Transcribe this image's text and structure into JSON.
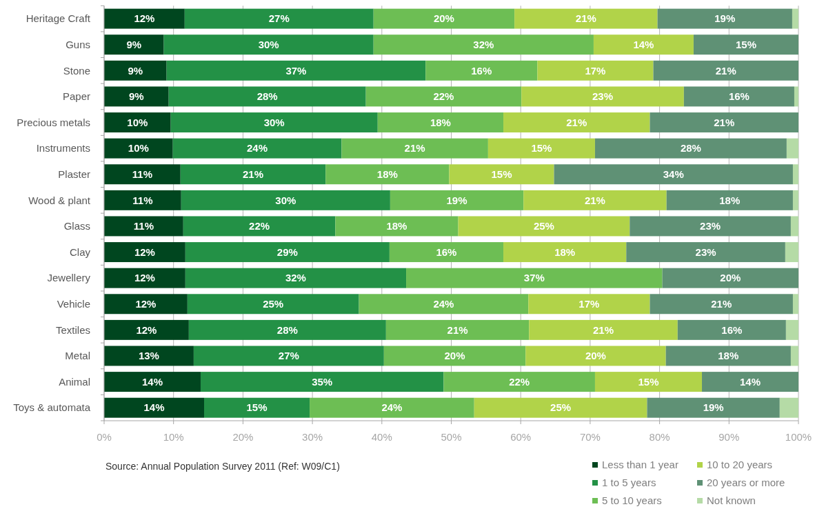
{
  "chart_data": {
    "type": "bar",
    "orientation": "horizontal",
    "stacked": true,
    "categories": [
      "Heritage Craft",
      "Guns",
      "Stone",
      "Paper",
      "Precious metals",
      "Instruments",
      "Plaster",
      "Wood & plant",
      "Glass",
      "Clay",
      "Jewellery",
      "Vehicle",
      "Textiles",
      "Metal",
      "Animal",
      "Toys & automata"
    ],
    "series": [
      {
        "name": "Less than 1 year",
        "color": "#00461f",
        "values": [
          11.6,
          8.6,
          9.0,
          9.3,
          9.6,
          9.9,
          11.0,
          11.1,
          11.4,
          11.7,
          11.7,
          12.0,
          12.2,
          12.9,
          13.9,
          14.4
        ],
        "value_labels": [
          "12%",
          "9%",
          "9%",
          "9%",
          "10%",
          "10%",
          "11%",
          "11%",
          "11%",
          "12%",
          "12%",
          "12%",
          "12%",
          "13%",
          "14%",
          "14%"
        ]
      },
      {
        "name": "1 to 5 years",
        "color": "#239146",
        "values": [
          27.2,
          30.2,
          37.3,
          28.4,
          29.8,
          24.3,
          20.9,
          30.1,
          21.9,
          29.4,
          31.8,
          24.7,
          28.4,
          27.4,
          35.0,
          15.2
        ],
        "value_labels": [
          "27%",
          "30%",
          "37%",
          "28%",
          "30%",
          "24%",
          "21%",
          "30%",
          "22%",
          "29%",
          "32%",
          "25%",
          "28%",
          "27%",
          "35%",
          "15%"
        ]
      },
      {
        "name": "5 to 10 years",
        "color": "#6dbe54",
        "values": [
          20.3,
          31.7,
          16.1,
          22.4,
          18.1,
          21.1,
          17.8,
          19.2,
          17.7,
          16.4,
          36.9,
          24.4,
          20.6,
          20.4,
          21.8,
          23.7
        ],
        "value_labels": [
          "20%",
          "32%",
          "16%",
          "22%",
          "18%",
          "21%",
          "18%",
          "19%",
          "18%",
          "16%",
          "37%",
          "24%",
          "21%",
          "20%",
          "22%",
          "24%"
        ]
      },
      {
        "name": "10 to 20 years",
        "color": "#b1d349",
        "values": [
          20.6,
          14.4,
          16.7,
          23.4,
          21.1,
          15.4,
          15.1,
          20.6,
          24.7,
          17.7,
          null,
          17.5,
          21.4,
          20.2,
          15.4,
          24.9
        ],
        "value_labels": [
          "21%",
          "14%",
          "17%",
          "23%",
          "21%",
          "15%",
          "15%",
          "21%",
          "25%",
          "18%",
          null,
          "17%",
          "21%",
          "20%",
          "15%",
          "25%"
        ]
      },
      {
        "name": "20 years or more",
        "color": "#5f9175",
        "values": [
          19.4,
          15.1,
          20.9,
          15.9,
          21.4,
          27.6,
          34.4,
          18.2,
          23.2,
          22.9,
          19.6,
          20.6,
          15.6,
          18.0,
          13.9,
          19.1
        ],
        "value_labels": [
          "19%",
          "15%",
          "21%",
          "16%",
          "21%",
          "28%",
          "34%",
          "18%",
          "23%",
          "23%",
          "20%",
          "21%",
          "16%",
          "18%",
          "14%",
          "19%"
        ]
      },
      {
        "name": "Not known",
        "color": "#b5dba6",
        "values": [
          0.9,
          null,
          null,
          0.6,
          null,
          1.7,
          0.8,
          0.8,
          1.1,
          1.9,
          null,
          0.8,
          1.8,
          1.1,
          null,
          2.7
        ],
        "value_labels": [
          null,
          null,
          null,
          null,
          null,
          null,
          null,
          null,
          null,
          null,
          null,
          null,
          null,
          null,
          null,
          null
        ]
      }
    ],
    "xlim": [
      0,
      100
    ],
    "xticks": [
      {
        "value": 0,
        "label": "0%"
      },
      {
        "value": 10,
        "label": "10%"
      },
      {
        "value": 20,
        "label": "20%"
      },
      {
        "value": 30,
        "label": "30%"
      },
      {
        "value": 40,
        "label": "40%"
      },
      {
        "value": 50,
        "label": "50%"
      },
      {
        "value": 60,
        "label": "60%"
      },
      {
        "value": 70,
        "label": "70%"
      },
      {
        "value": 80,
        "label": "80%"
      },
      {
        "value": 90,
        "label": "90%"
      },
      {
        "value": 100,
        "label": "100%"
      }
    ],
    "grid": "x",
    "legend": "bottom right",
    "annotations": [
      "Source: Annual Population Survey 2011 (Ref: W09/C1)"
    ]
  }
}
